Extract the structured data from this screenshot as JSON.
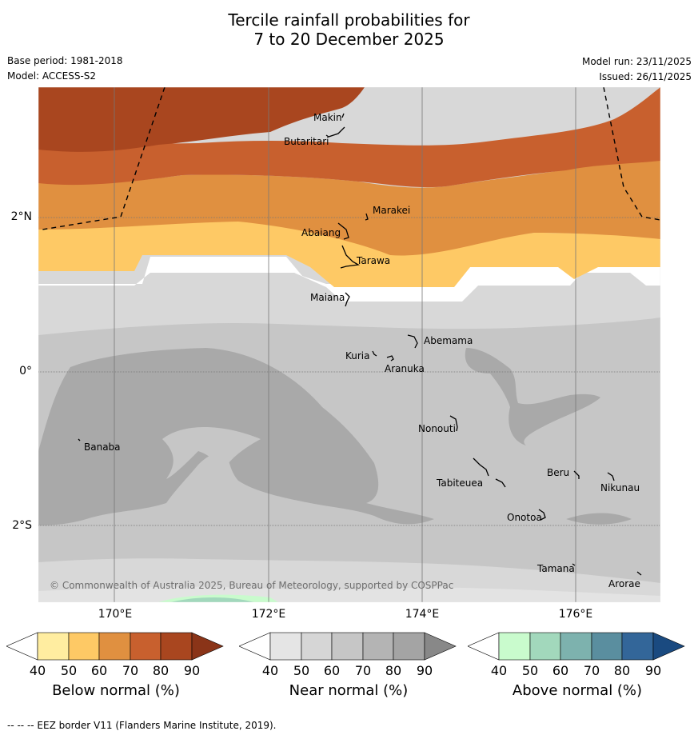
{
  "title_line1": "Tercile rainfall probabilities for",
  "title_line2": "7 to 20 December 2025",
  "base_period": "Base period: 1981-2018",
  "model": "Model: ACCESS-S2",
  "model_run": "Model run: 23/11/2025",
  "issued": "Issued: 26/11/2025",
  "latitude_labels": [
    "2°N",
    "0°",
    "2°S"
  ],
  "longitude_labels": [
    "170°E",
    "172°E",
    "174°E",
    "176°E"
  ],
  "places": [
    "Makin",
    "Butaritari",
    "Marakei",
    "Abaiang",
    "Tarawa",
    "Maiana",
    "Abemama",
    "Kuria",
    "Aranuka",
    "Nonouti",
    "Banaba",
    "Tabiteuea",
    "Beru",
    "Nikunau",
    "Onotoa",
    "Tamana",
    "Arorae"
  ],
  "copyright": "© Commonwealth of Australia 2025, Bureau of Meteorology, supported by COSPPac",
  "colorbars": [
    {
      "title": "Below normal (%)",
      "ticks": [
        "40",
        "50",
        "60",
        "70",
        "80",
        "90"
      ],
      "colors": [
        "#ffffff",
        "#ffeda0",
        "#fec965",
        "#e09040",
        "#c8602e",
        "#a9461f",
        "#8a3418"
      ]
    },
    {
      "title": "Near normal (%)",
      "ticks": [
        "40",
        "50",
        "60",
        "70",
        "80",
        "90"
      ],
      "colors": [
        "#ffffff",
        "#e5e5e5",
        "#d6d6d6",
        "#c6c6c6",
        "#b4b4b4",
        "#a4a4a4",
        "#888888"
      ]
    },
    {
      "title": "Above normal (%)",
      "ticks": [
        "40",
        "50",
        "60",
        "70",
        "80",
        "90"
      ],
      "colors": [
        "#ffffff",
        "#c9fbcd",
        "#a2d8bc",
        "#7db2ae",
        "#5a8e9f",
        "#336699",
        "#1a4a80"
      ]
    }
  ],
  "footer": "-- -- -- EEZ border V11 (Flanders Marine Institute, 2019)."
}
